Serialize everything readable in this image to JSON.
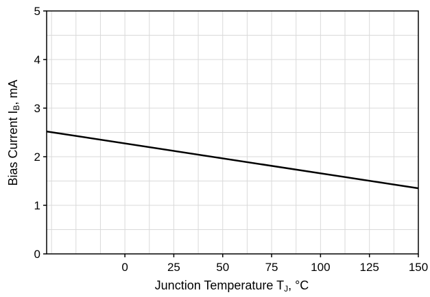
{
  "chart_data": {
    "type": "line",
    "xlabel": "Junction Temperature T",
    "xlabel_sub": "J",
    "xlabel_suffix": ", °C",
    "ylabel": "Bias Current I",
    "ylabel_sub": "B",
    "ylabel_suffix": ", mA",
    "xlim": [
      -40,
      150
    ],
    "ylim": [
      0,
      5
    ],
    "x_ticks": [
      0,
      25,
      50,
      75,
      100,
      125,
      150
    ],
    "y_ticks": [
      0,
      1,
      2,
      3,
      4,
      5
    ],
    "grid": true,
    "series": [
      {
        "x": [
          -40,
          150
        ],
        "y": [
          2.52,
          1.35
        ]
      }
    ],
    "colors": {
      "line": "#000000",
      "grid": "#d9d9d9",
      "axis": "#000000"
    }
  }
}
